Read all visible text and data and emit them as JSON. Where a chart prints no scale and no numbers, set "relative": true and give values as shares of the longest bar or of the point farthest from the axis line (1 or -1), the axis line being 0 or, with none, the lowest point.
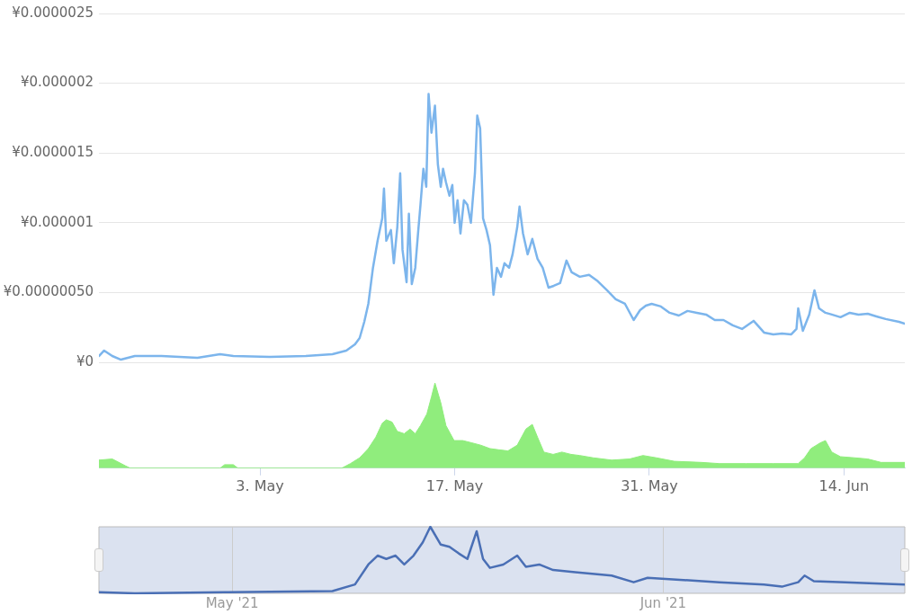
{
  "chart_data": [
    {
      "type": "line",
      "marker": "none",
      "grid": "y",
      "tick_labels": "y",
      "xlim": [
        "2021-04-21T10:00",
        "2021-06-18T09:00"
      ],
      "ylim": [
        0,
        2.5e-06
      ],
      "yticks": [
        {
          "value": 0,
          "label": "¥0"
        },
        {
          "value": 5e-07,
          "label": "¥0.00000050"
        },
        {
          "value": 1e-06,
          "label": "¥0.000001"
        },
        {
          "value": 1.5e-06,
          "label": "¥0.0000015"
        },
        {
          "value": 2e-06,
          "label": "¥0.000002"
        },
        {
          "value": 2.5e-06,
          "label": "¥0.0000025"
        }
      ],
      "series": [
        {
          "color": "#7cb5ec",
          "x": [
            "2021-04-21T10:00",
            "2021-04-21T19:00",
            "2021-04-22T09:00",
            "2021-04-23T00:00",
            "2021-04-24T00:00",
            "2021-04-25T22:00",
            "2021-04-28T12:00",
            "2021-04-30T03:00",
            "2021-05-01T02:00",
            "2021-05-03T17:00",
            "2021-05-06T07:00",
            "2021-05-08T05:00",
            "2021-05-09T05:00",
            "2021-05-09T20:00",
            "2021-05-10T04:00",
            "2021-05-10T12:00",
            "2021-05-10T19:00",
            "2021-05-11T03:00",
            "2021-05-11T11:00",
            "2021-05-11T19:00",
            "2021-05-11T22:00",
            "2021-05-12T02:00",
            "2021-05-12T10:00",
            "2021-05-12T15:00",
            "2021-05-12T21:00",
            "2021-05-13T02:00",
            "2021-05-13T06:00",
            "2021-05-13T13:00",
            "2021-05-13T17:00",
            "2021-05-13T22:00",
            "2021-05-14T04:00",
            "2021-05-14T09:00",
            "2021-05-14T13:00",
            "2021-05-14T18:00",
            "2021-05-14T23:00",
            "2021-05-15T03:00",
            "2021-05-15T08:00",
            "2021-05-15T14:00",
            "2021-05-15T19:00",
            "2021-05-16T00:00",
            "2021-05-16T04:00",
            "2021-05-16T09:00",
            "2021-05-16T15:00",
            "2021-05-16T20:00",
            "2021-05-17T00:00",
            "2021-05-17T05:00",
            "2021-05-17T10:00",
            "2021-05-17T16:00",
            "2021-05-17T22:00",
            "2021-05-18T04:00",
            "2021-05-18T11:00",
            "2021-05-18T15:00",
            "2021-05-18T20:00",
            "2021-05-19T01:00",
            "2021-05-19T07:00",
            "2021-05-19T13:00",
            "2021-05-19T19:00",
            "2021-05-20T01:00",
            "2021-05-20T08:00",
            "2021-05-20T14:00",
            "2021-05-20T22:00",
            "2021-05-21T04:00",
            "2021-05-21T12:00",
            "2021-05-21T16:00",
            "2021-05-21T22:00",
            "2021-05-22T06:00",
            "2021-05-22T14:00",
            "2021-05-22T23:00",
            "2021-05-23T08:00",
            "2021-05-23T18:00",
            "2021-05-24T03:00",
            "2021-05-24T14:00",
            "2021-05-25T01:00",
            "2021-05-25T10:00",
            "2021-05-26T00:00",
            "2021-05-26T16:00",
            "2021-05-27T07:00",
            "2021-05-27T23:00",
            "2021-05-28T14:00",
            "2021-05-29T06:00",
            "2021-05-29T21:00",
            "2021-05-30T08:00",
            "2021-05-30T18:00",
            "2021-05-31T04:00",
            "2021-05-31T20:00",
            "2021-06-01T11:00",
            "2021-06-02T03:00",
            "2021-06-02T18:00",
            "2021-06-03T10:00",
            "2021-06-04T02:00",
            "2021-06-04T17:00",
            "2021-06-05T08:00",
            "2021-06-06T00:00",
            "2021-06-06T16:00",
            "2021-06-07T12:00",
            "2021-06-08T06:00",
            "2021-06-08T22:00",
            "2021-06-09T13:00",
            "2021-06-10T05:00",
            "2021-06-10T14:00",
            "2021-06-10T17:00",
            "2021-06-11T01:00",
            "2021-06-11T12:00",
            "2021-06-11T21:00",
            "2021-06-12T05:00",
            "2021-06-12T16:00",
            "2021-06-13T03:00",
            "2021-06-13T18:00",
            "2021-06-14T10:00",
            "2021-06-15T01:00",
            "2021-06-15T17:00",
            "2021-06-16T08:00",
            "2021-06-17T00:00",
            "2021-06-17T23:00",
            "2021-06-18T09:00"
          ],
          "values": [
            4.5e-08,
            8.4e-08,
            4.5e-08,
            1.9e-08,
            4.5e-08,
            4.5e-08,
            3.2e-08,
            5.8e-08,
            4.5e-08,
            3.9e-08,
            4.5e-08,
            5.8e-08,
            8.4e-08,
            1.29e-07,
            1.74e-07,
            2.9e-07,
            4.19e-07,
            6.77e-07,
            8.71e-07,
            1.032e-06,
            1.245e-06,
            8.71e-07,
            9.48e-07,
            7.1e-07,
            9.68e-07,
            1.355e-06,
            8.06e-07,
            5.74e-07,
            1.065e-06,
            5.61e-07,
            6.77e-07,
            9.35e-07,
            1.129e-06,
            1.387e-06,
            1.258e-06,
            1.923e-06,
            1.645e-06,
            1.839e-06,
            1.419e-06,
            1.258e-06,
            1.387e-06,
            1.29e-06,
            1.194e-06,
            1.271e-06,
            1e-06,
            1.161e-06,
            9.23e-07,
            1.161e-06,
            1.129e-06,
            1e-06,
            1.355e-06,
            1.768e-06,
            1.677e-06,
            1.032e-06,
            9.48e-07,
            8.39e-07,
            4.84e-07,
            6.77e-07,
            6.13e-07,
            7.1e-07,
            6.77e-07,
            7.74e-07,
            9.68e-07,
            1.116e-06,
            9.23e-07,
            7.74e-07,
            8.84e-07,
            7.42e-07,
            6.77e-07,
            5.35e-07,
            5.48e-07,
            5.68e-07,
            7.29e-07,
            6.45e-07,
            6.13e-07,
            6.26e-07,
            5.81e-07,
            5.16e-07,
            4.52e-07,
            4.19e-07,
            3.03e-07,
            3.74e-07,
            4.06e-07,
            4.19e-07,
            4e-07,
            3.55e-07,
            3.35e-07,
            3.68e-07,
            3.55e-07,
            3.42e-07,
            3.03e-07,
            3.03e-07,
            2.65e-07,
            2.39e-07,
            2.97e-07,
            2.13e-07,
            2e-07,
            2.06e-07,
            2e-07,
            2.39e-07,
            3.87e-07,
            2.26e-07,
            3.42e-07,
            5.16e-07,
            3.87e-07,
            3.55e-07,
            3.42e-07,
            3.23e-07,
            3.55e-07,
            3.42e-07,
            3.48e-07,
            3.29e-07,
            3.1e-07,
            2.9e-07,
            2.77e-07
          ]
        }
      ]
    },
    {
      "type": "area",
      "relative": true,
      "marker": "none",
      "tick_labels": "x",
      "xlim": [
        "2021-04-21T10:00",
        "2021-06-18T09:00"
      ],
      "xticks": [
        {
          "value": "2021-05-03",
          "label": "3. May"
        },
        {
          "value": "2021-05-17",
          "label": "17. May"
        },
        {
          "value": "2021-05-31",
          "label": "31. May"
        },
        {
          "value": "2021-06-14",
          "label": "14. Jun"
        }
      ],
      "series": [
        {
          "color": "#90ed7d",
          "x": [
            "2021-04-21T10:00",
            "2021-04-22T09:00",
            "2021-04-23T08:00",
            "2021-04-23T16:00",
            "2021-04-30T03:00",
            "2021-04-30T11:00",
            "2021-05-01T02:00",
            "2021-05-01T10:00",
            "2021-05-08T21:00",
            "2021-05-09T12:00",
            "2021-05-10T04:00",
            "2021-05-10T19:00",
            "2021-05-11T08:00",
            "2021-05-11T19:00",
            "2021-05-12T02:00",
            "2021-05-12T12:00",
            "2021-05-12T21:00",
            "2021-05-13T09:00",
            "2021-05-13T19:00",
            "2021-05-14T04:00",
            "2021-05-14T13:00",
            "2021-05-15T00:00",
            "2021-05-15T08:00",
            "2021-05-15T14:00",
            "2021-05-16T00:00",
            "2021-05-16T09:00",
            "2021-05-16T23:00",
            "2021-05-17T14:00",
            "2021-05-18T06:00",
            "2021-05-18T21:00",
            "2021-05-19T13:00",
            "2021-05-20T04:00",
            "2021-05-20T20:00",
            "2021-05-21T12:00",
            "2021-05-22T03:00",
            "2021-05-22T14:00",
            "2021-05-22T23:00",
            "2021-05-23T10:00",
            "2021-05-24T02:00",
            "2021-05-24T17:00",
            "2021-05-25T09:00",
            "2021-05-26T00:00",
            "2021-05-26T23:00",
            "2021-05-28T07:00",
            "2021-05-29T14:00",
            "2021-05-30T13:00",
            "2021-05-31T12:00",
            "2021-06-01T19:00",
            "2021-06-03T18:00",
            "2021-06-05T01:00",
            "2021-06-06T23:00",
            "2021-06-08T22:00",
            "2021-06-10T17:00",
            "2021-06-11T04:00",
            "2021-06-11T15:00",
            "2021-06-12T07:00",
            "2021-06-12T16:00",
            "2021-06-13T03:00",
            "2021-06-13T18:00",
            "2021-06-14T18:00",
            "2021-06-15T17:00",
            "2021-06-16T16:00",
            "2021-06-18T09:00"
          ],
          "values": [
            0.095,
            0.108,
            0.027,
            0,
            0,
            0.041,
            0.041,
            0,
            0,
            0.054,
            0.122,
            0.23,
            0.365,
            0.527,
            0.568,
            0.541,
            0.432,
            0.405,
            0.459,
            0.405,
            0.5,
            0.635,
            0.838,
            1,
            0.77,
            0.5,
            0.324,
            0.324,
            0.297,
            0.27,
            0.23,
            0.216,
            0.203,
            0.27,
            0.459,
            0.514,
            0.365,
            0.189,
            0.162,
            0.189,
            0.162,
            0.149,
            0.122,
            0.095,
            0.108,
            0.149,
            0.122,
            0.081,
            0.068,
            0.054,
            0.054,
            0.054,
            0.054,
            0.122,
            0.23,
            0.297,
            0.324,
            0.189,
            0.135,
            0.122,
            0.108,
            0.068,
            0.068
          ]
        }
      ]
    },
    {
      "type": "line",
      "relative": true,
      "marker": "none",
      "grid": "x",
      "xlim": [
        "2021-04-21T10:00",
        "2021-06-18T09:00"
      ],
      "xticks": [
        {
          "value": "2021-05-01",
          "label": "May '21"
        },
        {
          "value": "2021-06-01",
          "label": "Jun '21"
        }
      ],
      "series": [
        {
          "color": "#4a6fb5",
          "x": [
            "2021-04-21T10:00",
            "2021-04-24T00:00",
            "2021-04-30T11:00",
            "2021-05-08T05:00",
            "2021-05-09T20:00",
            "2021-05-10T19:00",
            "2021-05-11T11:00",
            "2021-05-12T02:00",
            "2021-05-12T18:00",
            "2021-05-13T09:00",
            "2021-05-14T01:00",
            "2021-05-14T17:00",
            "2021-05-15T06:00",
            "2021-05-16T00:00",
            "2021-05-16T15:00",
            "2021-05-17T07:00",
            "2021-05-17T22:00",
            "2021-05-18T14:00",
            "2021-05-19T01:00",
            "2021-05-19T13:00",
            "2021-05-20T12:00",
            "2021-05-21T12:00",
            "2021-05-22T03:00",
            "2021-05-23T02:00",
            "2021-05-24T02:00",
            "2021-05-25T16:00",
            "2021-05-28T07:00",
            "2021-05-29T21:00",
            "2021-05-30T21:00",
            "2021-06-02T11:00",
            "2021-06-05T01:00",
            "2021-06-08T06:00",
            "2021-06-09T13:00",
            "2021-06-10T17:00",
            "2021-06-11T04:00",
            "2021-06-11T20:00",
            "2021-06-14T02:00",
            "2021-06-18T09:00"
          ],
          "values": [
            0.017,
            0,
            0.017,
            0.033,
            0.133,
            0.433,
            0.567,
            0.517,
            0.567,
            0.433,
            0.567,
            0.767,
            1,
            0.733,
            0.7,
            0.6,
            0.517,
            0.933,
            0.517,
            0.383,
            0.433,
            0.567,
            0.4,
            0.433,
            0.35,
            0.317,
            0.267,
            0.167,
            0.233,
            0.2,
            0.167,
            0.133,
            0.1,
            0.167,
            0.267,
            0.183,
            0.167,
            0.133
          ]
        }
      ]
    }
  ]
}
